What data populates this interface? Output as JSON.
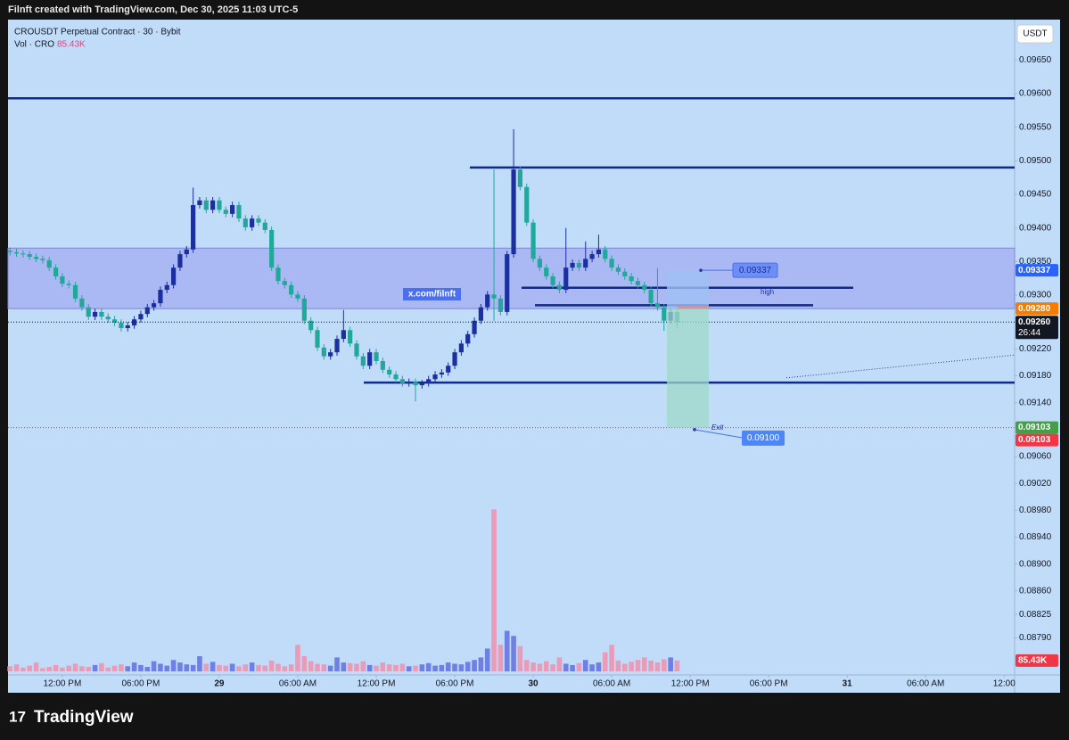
{
  "header": {
    "attribution": "Filnft created with TradingView.com, Dec 30, 2025 11:03 UTC-5"
  },
  "footer": {
    "brand": "TradingView"
  },
  "chart_data": {
    "type": "candlestick",
    "title": "CROUSDT Perpetual Contract · 30 · Bybit",
    "volume_title": "Vol · CRO",
    "currency": "USDT",
    "watermark": "x.com/filnft",
    "colors": {
      "up": "#1b2f9e",
      "down": "#22a79b",
      "volume_up": "#6f7fe3",
      "volume_down": "#e99cb8"
    },
    "open": [
      0.09366,
      0.09364,
      0.09362,
      0.09361,
      0.09357,
      0.09354,
      0.09352,
      0.09341,
      0.09328,
      0.09317,
      0.09315,
      0.09295,
      0.09282,
      0.09268,
      0.09275,
      0.09268,
      0.09264,
      0.09259,
      0.09251,
      0.09255,
      0.09264,
      0.09272,
      0.09282,
      0.09288,
      0.09308,
      0.09315,
      0.09341,
      0.09361,
      0.09368,
      0.09434,
      0.09441,
      0.09427,
      0.09441,
      0.09427,
      0.09421,
      0.09434,
      0.09414,
      0.09401,
      0.09414,
      0.09408,
      0.09397,
      0.09341,
      0.09321,
      0.09315,
      0.09301,
      0.09295,
      0.09262,
      0.09248,
      0.09222,
      0.09209,
      0.09215,
      0.09235,
      0.09248,
      0.09228,
      0.09209,
      0.09195,
      0.09215,
      0.09202,
      0.09189,
      0.09182,
      0.09175,
      0.09169,
      0.09171,
      0.09166,
      0.09169,
      0.09175,
      0.09182,
      0.09185,
      0.09195,
      0.09215,
      0.09228,
      0.09242,
      0.09262,
      0.09282,
      0.09301,
      0.09295,
      0.09275,
      0.09361,
      0.09487,
      0.09461,
      0.09408,
      0.09354,
      0.09341,
      0.09328,
      0.09315,
      0.09308,
      0.09341,
      0.09348,
      0.09341,
      0.09354,
      0.09361,
      0.09368,
      0.09354,
      0.09341,
      0.09335,
      0.09328,
      0.09321,
      0.09315,
      0.09308,
      0.09288,
      0.09282,
      0.09262,
      0.09275
    ],
    "high": [
      0.09371,
      0.09369,
      0.09367,
      0.09366,
      0.09362,
      0.09359,
      0.09357,
      0.09346,
      0.09333,
      0.09322,
      0.0932,
      0.093,
      0.09287,
      0.0928,
      0.0928,
      0.09273,
      0.09269,
      0.09264,
      0.0926,
      0.09269,
      0.09277,
      0.09287,
      0.09293,
      0.09313,
      0.0932,
      0.09346,
      0.09366,
      0.09373,
      0.0946,
      0.09446,
      0.09446,
      0.09446,
      0.09446,
      0.09432,
      0.09439,
      0.09439,
      0.09419,
      0.09419,
      0.09419,
      0.09413,
      0.09402,
      0.09346,
      0.09326,
      0.0932,
      0.09306,
      0.093,
      0.09267,
      0.09253,
      0.09227,
      0.0922,
      0.0924,
      0.09278,
      0.09253,
      0.09233,
      0.09214,
      0.0922,
      0.0922,
      0.09207,
      0.09194,
      0.09187,
      0.0918,
      0.09176,
      0.09176,
      0.09174,
      0.0918,
      0.09187,
      0.0919,
      0.092,
      0.0922,
      0.09233,
      0.09247,
      0.09267,
      0.09287,
      0.09306,
      0.09487,
      0.093,
      0.09366,
      0.09547,
      0.09492,
      0.09466,
      0.09413,
      0.09359,
      0.09346,
      0.09333,
      0.0932,
      0.094,
      0.09353,
      0.09353,
      0.0938,
      0.09366,
      0.0939,
      0.09373,
      0.09359,
      0.09346,
      0.0934,
      0.09333,
      0.09326,
      0.0932,
      0.09313,
      0.0934,
      0.09287,
      0.0928,
      0.0928
    ],
    "low": [
      0.09359,
      0.09357,
      0.09356,
      0.09352,
      0.09349,
      0.09347,
      0.09336,
      0.09323,
      0.09312,
      0.0931,
      0.0929,
      0.09277,
      0.09263,
      0.09263,
      0.09263,
      0.09259,
      0.09254,
      0.09246,
      0.09246,
      0.0925,
      0.09259,
      0.09267,
      0.09277,
      0.09283,
      0.09303,
      0.0931,
      0.09336,
      0.09356,
      0.09363,
      0.09429,
      0.09422,
      0.09422,
      0.09422,
      0.09416,
      0.09416,
      0.09409,
      0.09396,
      0.09396,
      0.09403,
      0.09392,
      0.09336,
      0.09316,
      0.0931,
      0.09296,
      0.0929,
      0.09257,
      0.09243,
      0.09217,
      0.09204,
      0.09204,
      0.0921,
      0.0923,
      0.09223,
      0.09204,
      0.0919,
      0.0919,
      0.09197,
      0.09184,
      0.09177,
      0.0917,
      0.09164,
      0.09164,
      0.09142,
      0.09161,
      0.09164,
      0.0917,
      0.09177,
      0.0918,
      0.0919,
      0.0921,
      0.09223,
      0.09237,
      0.09257,
      0.09277,
      0.09262,
      0.0927,
      0.0927,
      0.09356,
      0.09456,
      0.09403,
      0.09349,
      0.09336,
      0.09323,
      0.0931,
      0.09303,
      0.09303,
      0.09336,
      0.09336,
      0.09336,
      0.09349,
      0.09356,
      0.09349,
      0.09336,
      0.0933,
      0.09323,
      0.09316,
      0.0931,
      0.09303,
      0.09283,
      0.09277,
      0.09247,
      0.09257,
      0.0925
    ],
    "close": [
      0.09364,
      0.09362,
      0.09361,
      0.09357,
      0.09354,
      0.09352,
      0.09341,
      0.09328,
      0.09317,
      0.09315,
      0.09295,
      0.09282,
      0.09268,
      0.09275,
      0.09268,
      0.09264,
      0.09259,
      0.09251,
      0.09255,
      0.09264,
      0.09272,
      0.09282,
      0.09288,
      0.09308,
      0.09315,
      0.09341,
      0.09361,
      0.09368,
      0.09434,
      0.09441,
      0.09427,
      0.09441,
      0.09427,
      0.09421,
      0.09434,
      0.09414,
      0.09401,
      0.09414,
      0.09408,
      0.09397,
      0.09341,
      0.09321,
      0.09315,
      0.09301,
      0.09295,
      0.09262,
      0.09248,
      0.09222,
      0.09209,
      0.09215,
      0.09235,
      0.09248,
      0.09228,
      0.09209,
      0.09195,
      0.09215,
      0.09202,
      0.09189,
      0.09182,
      0.09175,
      0.09169,
      0.09171,
      0.09166,
      0.09169,
      0.09175,
      0.09182,
      0.09185,
      0.09195,
      0.09215,
      0.09228,
      0.09242,
      0.09262,
      0.09282,
      0.09301,
      0.09295,
      0.09275,
      0.09361,
      0.09487,
      0.09461,
      0.09408,
      0.09354,
      0.09341,
      0.09328,
      0.09315,
      0.09308,
      0.09341,
      0.09348,
      0.09341,
      0.09354,
      0.09361,
      0.09368,
      0.09354,
      0.09341,
      0.09335,
      0.09328,
      0.09321,
      0.09315,
      0.09308,
      0.09288,
      0.09282,
      0.09262,
      0.09275,
      0.0926
    ],
    "volume": {
      "values": [
        40,
        55,
        30,
        45,
        70,
        25,
        35,
        50,
        30,
        45,
        60,
        40,
        35,
        50,
        65,
        30,
        45,
        55,
        40,
        70,
        50,
        35,
        80,
        60,
        45,
        90,
        70,
        55,
        50,
        120,
        60,
        75,
        50,
        45,
        60,
        40,
        55,
        70,
        50,
        45,
        85,
        60,
        40,
        55,
        210,
        120,
        80,
        60,
        55,
        45,
        110,
        70,
        65,
        60,
        80,
        50,
        45,
        70,
        55,
        50,
        60,
        40,
        45,
        55,
        65,
        45,
        50,
        70,
        60,
        55,
        75,
        90,
        110,
        180,
        1280,
        210,
        320,
        280,
        200,
        90,
        70,
        60,
        80,
        55,
        110,
        60,
        50,
        65,
        90,
        55,
        70,
        150,
        210,
        85,
        60,
        75,
        90,
        110,
        85,
        70,
        95,
        110,
        85.43
      ],
      "last_value_label": "85.43K"
    },
    "y2lim": [
      0,
      5150
    ],
    "xlim": [
      -0.3,
      153.6
    ],
    "xticks": [
      {
        "value": 8,
        "label": "12:00 PM"
      },
      {
        "value": 20,
        "label": "06:00 PM"
      },
      {
        "value": 32,
        "label": "29"
      },
      {
        "value": 44,
        "label": "06:00 AM"
      },
      {
        "value": 56,
        "label": "12:00 PM"
      },
      {
        "value": 68,
        "label": "06:00 PM"
      },
      {
        "value": 80,
        "label": "30"
      },
      {
        "value": 92,
        "label": "06:00 AM"
      },
      {
        "value": 104,
        "label": "12:00 PM"
      },
      {
        "value": 116,
        "label": "06:00 PM"
      },
      {
        "value": 128,
        "label": "31"
      },
      {
        "value": 140,
        "label": "06:00 AM"
      },
      {
        "value": 152,
        "label": "12:00"
      }
    ],
    "ylim": [
      0.08735,
      0.0971
    ],
    "yticks": [
      {
        "value": 0.0965,
        "label": "0.09650"
      },
      {
        "value": 0.096,
        "label": "0.09600"
      },
      {
        "value": 0.0955,
        "label": "0.09550"
      },
      {
        "value": 0.095,
        "label": "0.09500"
      },
      {
        "value": 0.0945,
        "label": "0.09450"
      },
      {
        "value": 0.094,
        "label": "0.09400"
      },
      {
        "value": 0.0935,
        "label": "0.09350"
      },
      {
        "value": 0.093,
        "label": "0.09300"
      },
      {
        "value": 0.0922,
        "label": "0.09220"
      },
      {
        "value": 0.0918,
        "label": "0.09180"
      },
      {
        "value": 0.0914,
        "label": "0.09140"
      },
      {
        "value": 0.0906,
        "label": "0.09060"
      },
      {
        "value": 0.0902,
        "label": "0.09020"
      },
      {
        "value": 0.0898,
        "label": "0.08980"
      },
      {
        "value": 0.0894,
        "label": "0.08940"
      },
      {
        "value": 0.089,
        "label": "0.08900"
      },
      {
        "value": 0.0886,
        "label": "0.08860"
      },
      0.08825,
      {
        "value": 0.0879,
        "label": "0.08790"
      }
    ],
    "zone": {
      "top": 0.0937,
      "bottom": 0.0928
    },
    "hlines": [
      0.09593,
      0.0949,
      0.0917,
      0.09311,
      0.09285
    ],
    "line_label": "high",
    "alert_line": 0.09103,
    "trendline": [
      0.09177,
      0.09211
    ],
    "position": {
      "stop": 0.09337,
      "entry": 0.0928,
      "target": 0.09103
    },
    "markers": [
      {
        "value": 0.09337
      },
      {
        "value": 0.091,
        "label": "0.09100",
        "text": "Exit"
      }
    ],
    "price_tags": [
      {
        "value": 0.09337,
        "color": "#2962ff"
      },
      {
        "value": 0.0928,
        "label": "0.09280",
        "color": "#f57c00"
      },
      {
        "value": 0.0926,
        "label": "0.09260",
        "color": "#131722",
        "countdown": "26:44"
      },
      {
        "value": 0.09103,
        "color": "#43a047"
      },
      {
        "value": 0.09103,
        "color": "#f23645"
      }
    ]
  }
}
